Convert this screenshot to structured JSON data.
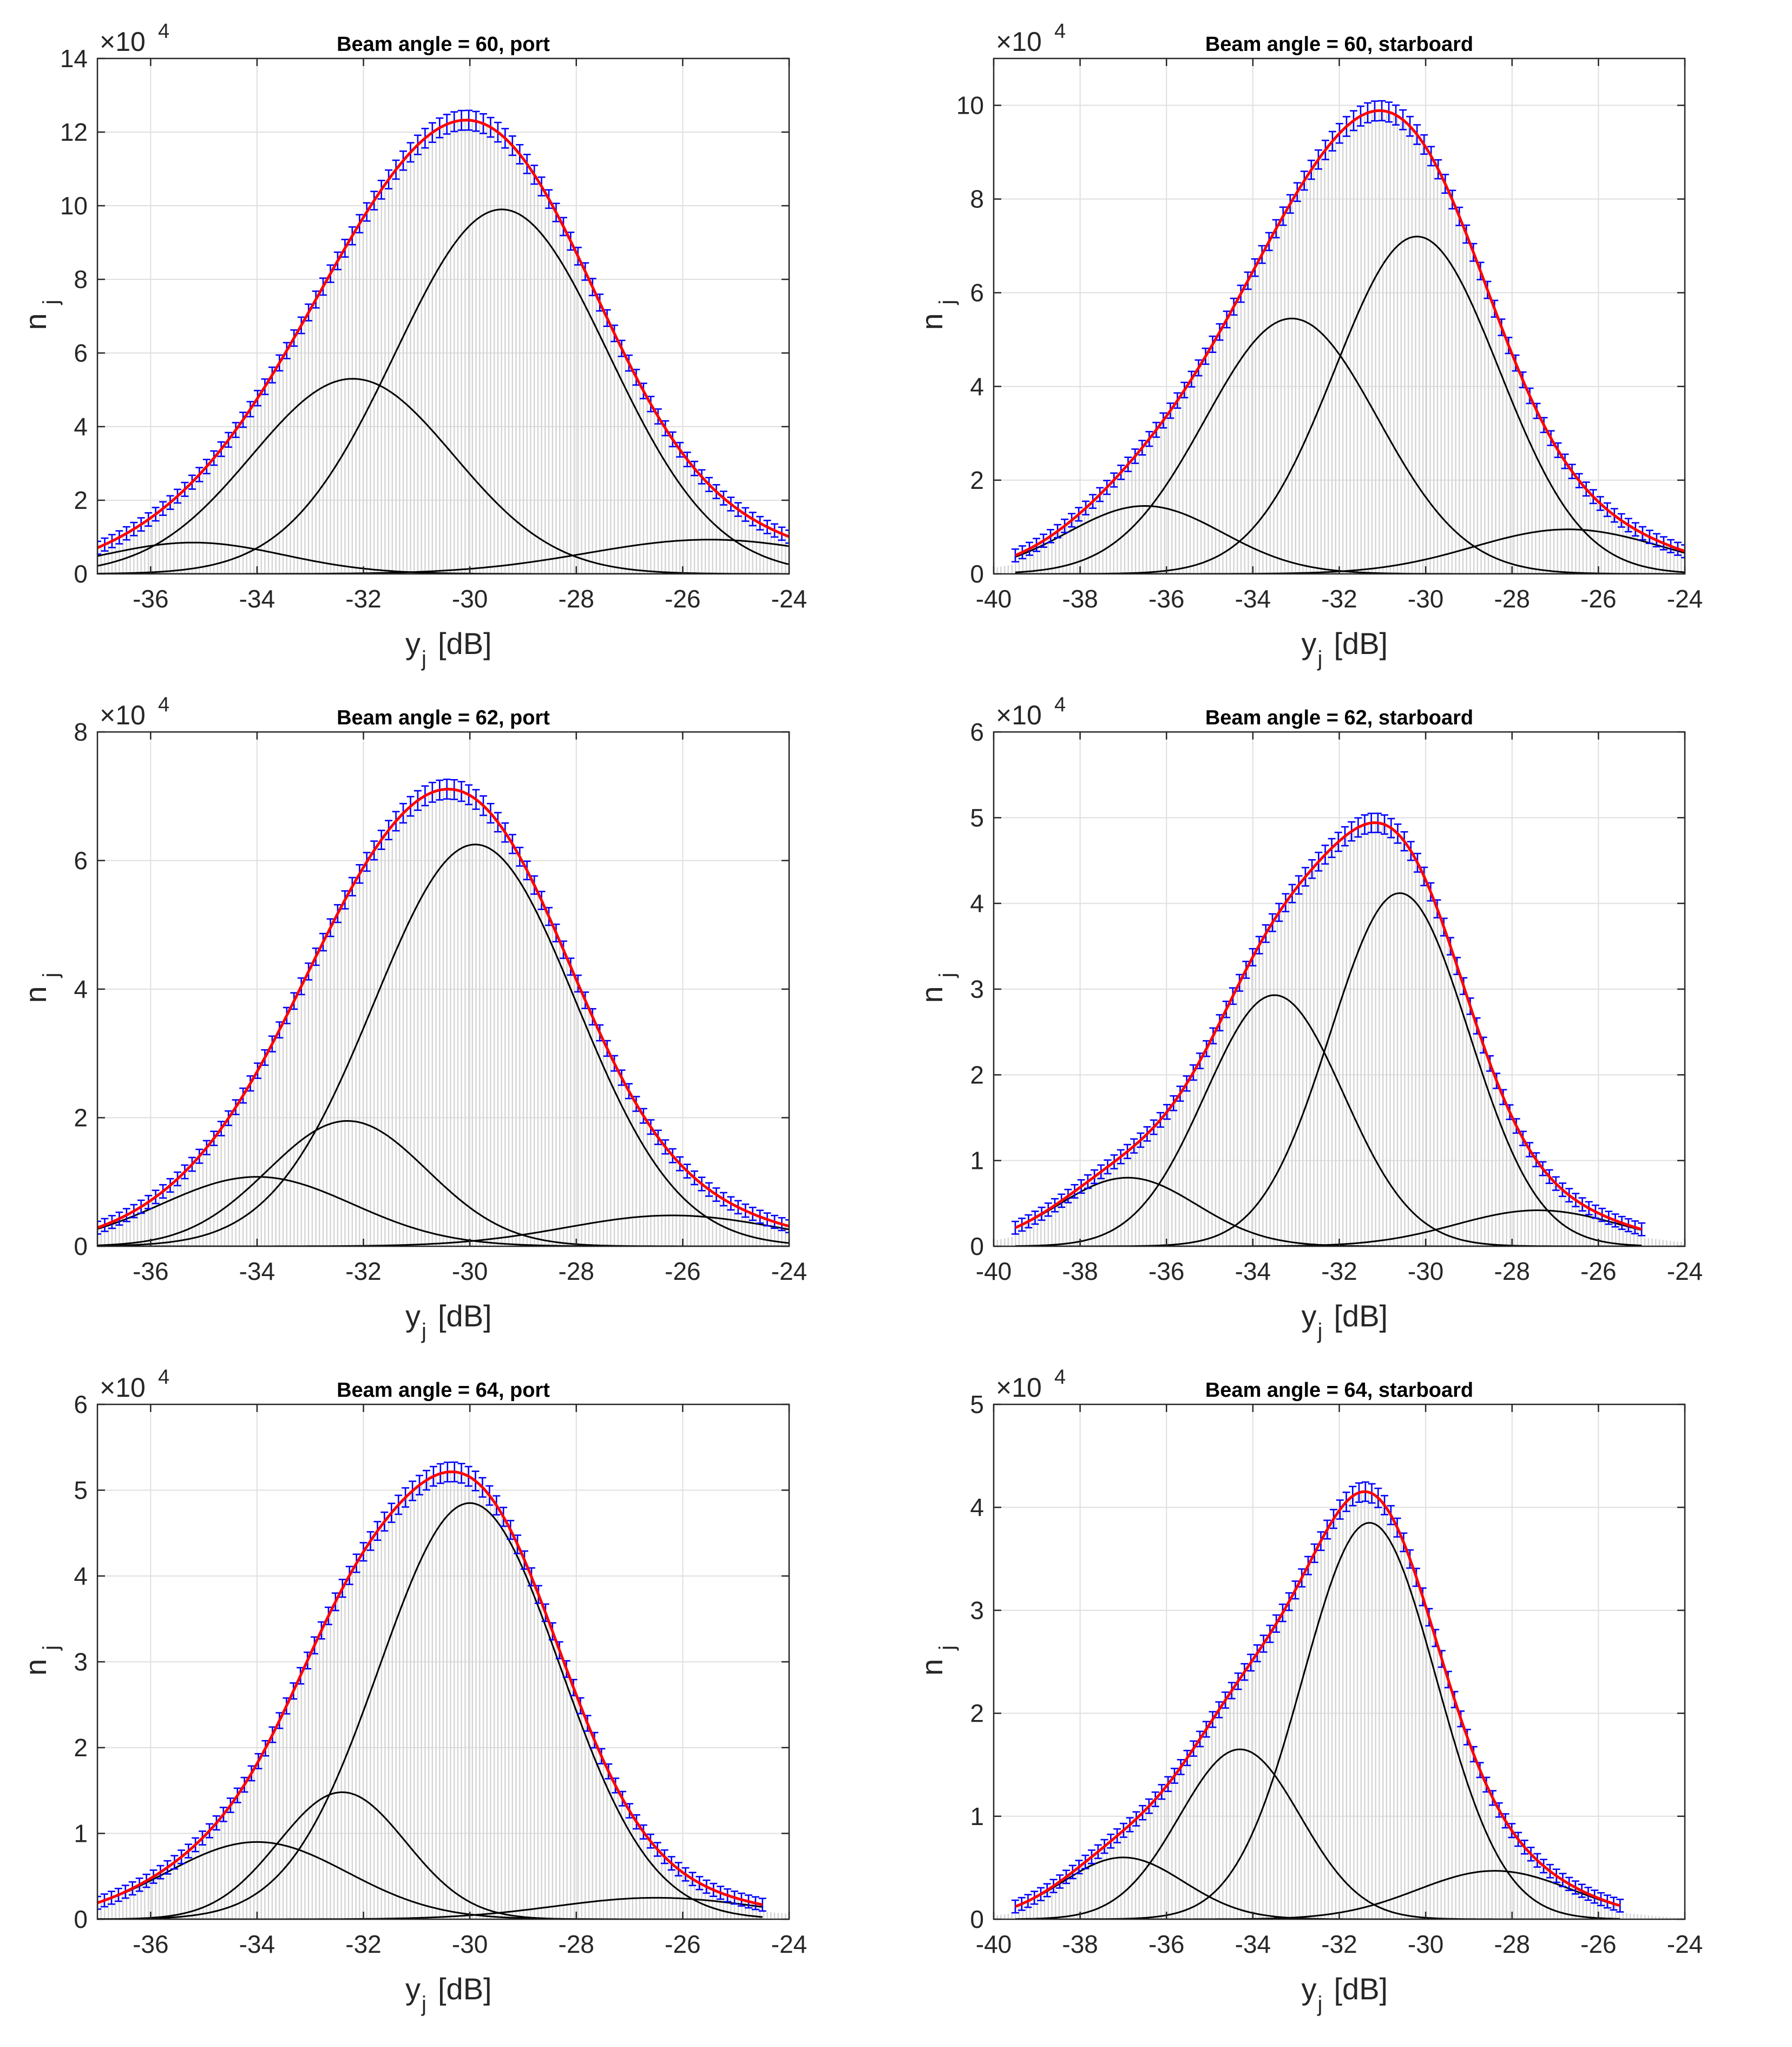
{
  "chart_data": [
    {
      "type": "histogram-fit",
      "title": "Beam angle = 60, port",
      "xlabel": "y",
      "xlabel_sub": "j",
      "xlabel_unit": "[dB]",
      "ylabel": "n",
      "ylabel_sub": "j",
      "exponent_label": "×10",
      "exponent": "4",
      "xlim": [
        -37,
        -24
      ],
      "ylim": [
        0,
        14
      ],
      "xticks": [
        -36,
        -34,
        -32,
        -30,
        -28,
        -26,
        -24
      ],
      "yticks": [
        0,
        2,
        4,
        6,
        8,
        10,
        12,
        14
      ],
      "data_range": [
        -37,
        -24
      ],
      "grid": true,
      "components": [
        {
          "mean": -35.2,
          "sigma": 1.7,
          "peak": 0.85
        },
        {
          "mean": -32.2,
          "sigma": 1.9,
          "peak": 5.3
        },
        {
          "mean": -29.4,
          "sigma": 2.0,
          "peak": 9.9
        },
        {
          "mean": -25.5,
          "sigma": 2.3,
          "peak": 0.93
        }
      ]
    },
    {
      "type": "histogram-fit",
      "title": "Beam angle = 60, starboard",
      "xlabel": "y",
      "xlabel_sub": "j",
      "xlabel_unit": "[dB]",
      "ylabel": "n",
      "ylabel_sub": "j",
      "exponent_label": "×10",
      "exponent": "4",
      "xlim": [
        -40,
        -24
      ],
      "ylim": [
        0,
        11
      ],
      "xticks": [
        -40,
        -38,
        -36,
        -34,
        -32,
        -30,
        -28,
        -26,
        -24
      ],
      "yticks": [
        0,
        2,
        4,
        6,
        8,
        10
      ],
      "data_range": [
        -39.5,
        -24
      ],
      "grid": true,
      "components": [
        {
          "mean": -36.5,
          "sigma": 1.8,
          "peak": 1.45
        },
        {
          "mean": -33.1,
          "sigma": 2.0,
          "peak": 5.45
        },
        {
          "mean": -30.2,
          "sigma": 1.9,
          "peak": 7.2
        },
        {
          "mean": -26.7,
          "sigma": 2.2,
          "peak": 0.95
        }
      ]
    },
    {
      "type": "histogram-fit",
      "title": "Beam angle = 62, port",
      "xlabel": "y",
      "xlabel_sub": "j",
      "xlabel_unit": "[dB]",
      "ylabel": "n",
      "ylabel_sub": "j",
      "exponent_label": "×10",
      "exponent": "4",
      "xlim": [
        -37,
        -24
      ],
      "ylim": [
        0,
        8
      ],
      "xticks": [
        -36,
        -34,
        -32,
        -30,
        -28,
        -26,
        -24
      ],
      "yticks": [
        0,
        2,
        4,
        6,
        8
      ],
      "data_range": [
        -37,
        -24
      ],
      "grid": true,
      "components": [
        {
          "mean": -34.0,
          "sigma": 1.8,
          "peak": 1.08
        },
        {
          "mean": -32.3,
          "sigma": 1.5,
          "peak": 1.95
        },
        {
          "mean": -29.9,
          "sigma": 1.9,
          "peak": 6.25
        },
        {
          "mean": -26.2,
          "sigma": 2.0,
          "peak": 0.48
        }
      ]
    },
    {
      "type": "histogram-fit",
      "title": "Beam angle = 62, starboard",
      "xlabel": "y",
      "xlabel_sub": "j",
      "xlabel_unit": "[dB]",
      "ylabel": "n",
      "ylabel_sub": "j",
      "exponent_label": "×10",
      "exponent": "4",
      "xlim": [
        -40,
        -24
      ],
      "ylim": [
        0,
        6
      ],
      "xticks": [
        -40,
        -38,
        -36,
        -34,
        -32,
        -30,
        -28,
        -26,
        -24
      ],
      "yticks": [
        0,
        1,
        2,
        3,
        4,
        5,
        6
      ],
      "data_range": [
        -39.5,
        -25
      ],
      "grid": true,
      "components": [
        {
          "mean": -36.9,
          "sigma": 1.6,
          "peak": 0.8
        },
        {
          "mean": -33.5,
          "sigma": 1.6,
          "peak": 2.93
        },
        {
          "mean": -30.6,
          "sigma": 1.6,
          "peak": 4.12
        },
        {
          "mean": -27.4,
          "sigma": 1.9,
          "peak": 0.42
        }
      ]
    },
    {
      "type": "histogram-fit",
      "title": "Beam angle = 64, port",
      "xlabel": "y",
      "xlabel_sub": "j",
      "xlabel_unit": "[dB]",
      "ylabel": "n",
      "ylabel_sub": "j",
      "exponent_label": "×10",
      "exponent": "4",
      "xlim": [
        -37,
        -24
      ],
      "ylim": [
        0,
        6
      ],
      "xticks": [
        -36,
        -34,
        -32,
        -30,
        -28,
        -26,
        -24
      ],
      "yticks": [
        0,
        1,
        2,
        3,
        4,
        5,
        6
      ],
      "data_range": [
        -37,
        -24.5
      ],
      "grid": true,
      "components": [
        {
          "mean": -34.0,
          "sigma": 1.7,
          "peak": 0.9
        },
        {
          "mean": -32.4,
          "sigma": 1.2,
          "peak": 1.48
        },
        {
          "mean": -30.0,
          "sigma": 1.7,
          "peak": 4.85
        },
        {
          "mean": -26.5,
          "sigma": 1.9,
          "peak": 0.25
        }
      ]
    },
    {
      "type": "histogram-fit",
      "title": "Beam angle = 64, starboard",
      "xlabel": "y",
      "xlabel_sub": "j",
      "xlabel_unit": "[dB]",
      "ylabel": "n",
      "ylabel_sub": "j",
      "exponent_label": "×10",
      "exponent": "4",
      "xlim": [
        -40,
        -24
      ],
      "ylim": [
        0,
        5
      ],
      "xticks": [
        -40,
        -38,
        -36,
        -34,
        -32,
        -30,
        -28,
        -26,
        -24
      ],
      "yticks": [
        0,
        1,
        2,
        3,
        4,
        5
      ],
      "data_range": [
        -39.5,
        -25.5
      ],
      "grid": true,
      "components": [
        {
          "mean": -37.0,
          "sigma": 1.4,
          "peak": 0.6
        },
        {
          "mean": -34.3,
          "sigma": 1.4,
          "peak": 1.65
        },
        {
          "mean": -31.3,
          "sigma": 1.55,
          "peak": 3.85
        },
        {
          "mean": -28.4,
          "sigma": 1.8,
          "peak": 0.47
        }
      ]
    }
  ],
  "colors": {
    "histogram": "#d4d4d4",
    "fit_total": "#ff0000",
    "error_bars": "#0000ff",
    "components": "#000000",
    "grid": "#dfdfdf",
    "axes": "#262626"
  }
}
